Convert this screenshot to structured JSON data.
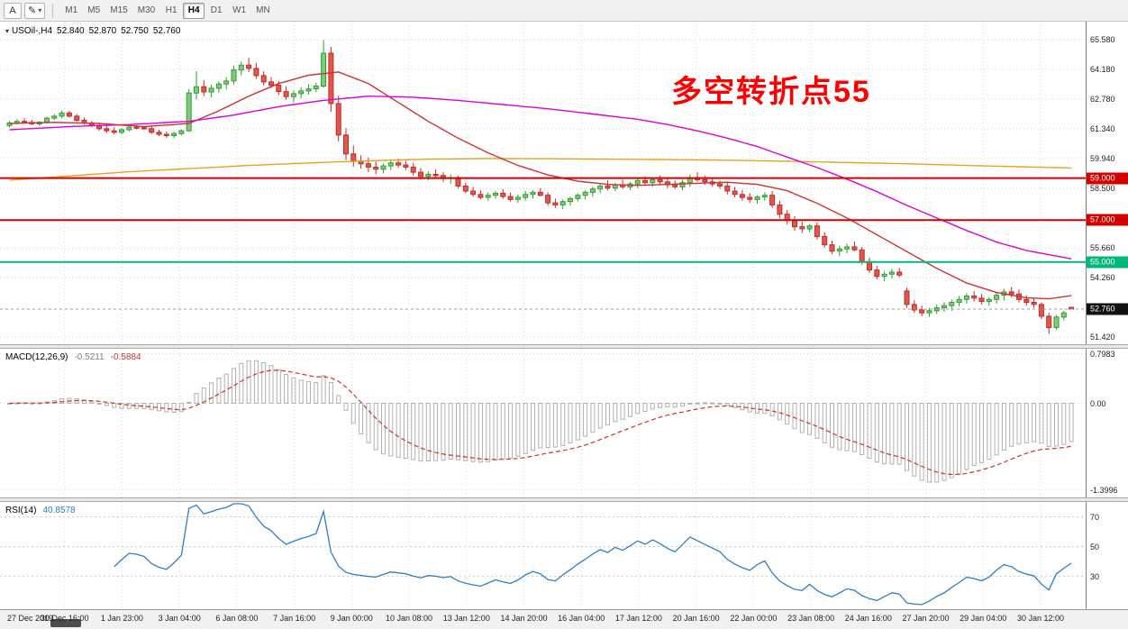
{
  "toolbar": {
    "text_tool_label": "A",
    "timeframes": [
      "M1",
      "M5",
      "M15",
      "M30",
      "H1",
      "H4",
      "D1",
      "W1",
      "MN"
    ],
    "active_timeframe": "H4"
  },
  "chart_header": {
    "symbol": "USOil-,H4",
    "open": "52.840",
    "high": "52.870",
    "low": "52.750",
    "close": "52.760"
  },
  "annotation": {
    "text": "多空转折点55",
    "color": "#ff0000"
  },
  "price_axis": {
    "grid": [
      {
        "price": 65.58,
        "label": "65.580"
      },
      {
        "price": 64.18,
        "label": "64.180"
      },
      {
        "price": 62.78,
        "label": "62.780"
      },
      {
        "price": 61.34,
        "label": "61.340"
      },
      {
        "price": 59.94,
        "label": "59.940"
      },
      {
        "price": 58.5,
        "label": "58.500"
      },
      {
        "price": 55.66,
        "label": "55.660"
      },
      {
        "price": 54.26,
        "label": "54.260"
      },
      {
        "price": 51.42,
        "label": "51.420"
      }
    ]
  },
  "hlines": [
    {
      "price": 59.0,
      "label": "59.000",
      "color": "#d40000"
    },
    {
      "price": 57.0,
      "label": "57.000",
      "color": "#d40000"
    },
    {
      "price": 55.0,
      "label": "55.000",
      "color": "#00b87a"
    }
  ],
  "current_price": {
    "value": 52.76,
    "label": "52.760",
    "tag_color": "#111111"
  },
  "indicators": {
    "macd": {
      "label": "MACD(12,26,9)",
      "value_main": "-0.5211",
      "value_signal": "-0.5884",
      "params": {
        "fast": 12,
        "slow": 26,
        "signal": 9
      },
      "axis_labels": [
        {
          "value": 0.7983,
          "label": "0.7983"
        },
        {
          "value": 0.0,
          "label": "0.00"
        },
        {
          "value": -1.3996,
          "label": "-1.3996"
        }
      ]
    },
    "rsi": {
      "label": "RSI(14)",
      "value": "40.8578",
      "period": 14,
      "levels": [
        {
          "value": 70,
          "label": "70"
        },
        {
          "value": 50,
          "label": "50"
        },
        {
          "value": 30,
          "label": "30"
        }
      ]
    }
  },
  "time_axis": {
    "ticks": [
      "27 Dec 2019",
      "30 Dec 16:00",
      "1 Jan 23:00",
      "3 Jan 04:00",
      "6 Jan 08:00",
      "7 Jan 16:00",
      "9 Jan 00:00",
      "10 Jan 08:00",
      "13 Jan 12:00",
      "14 Jan 20:00",
      "16 Jan 04:00",
      "17 Jan 12:00",
      "20 Jan 16:00",
      "22 Jan 00:00",
      "23 Jan 08:00",
      "24 Jan 16:00",
      "27 Jan 20:00",
      "29 Jan 04:00",
      "30 Jan 12:00"
    ]
  },
  "colors": {
    "bull_stroke": "#2f9e2f",
    "bull_fill": "#7ecb7e",
    "bear_stroke": "#c62828",
    "bear_fill": "#e0584c",
    "grid": "#d8d8d8",
    "macd_hist": "#b0b0b0",
    "macd_signal": "#cc3333",
    "rsi_line": "#2e7fc2",
    "rsi_level": "#c8c8c8",
    "current_line": "#999999"
  },
  "chart_data": {
    "type": "candlestick",
    "symbol": "USOil-",
    "timeframe": "H4",
    "title": "USOil-,H4 52.840 52.870 52.750 52.760",
    "price_range": [
      51.0,
      66.45
    ],
    "candles": [
      [
        61.5,
        61.72,
        61.4,
        61.62
      ],
      [
        61.62,
        61.8,
        61.55,
        61.7
      ],
      [
        61.7,
        61.85,
        61.58,
        61.65
      ],
      [
        61.65,
        61.78,
        61.52,
        61.58
      ],
      [
        61.58,
        61.72,
        61.48,
        61.66
      ],
      [
        61.66,
        61.92,
        61.6,
        61.85
      ],
      [
        61.85,
        62.05,
        61.75,
        61.95
      ],
      [
        61.95,
        62.22,
        61.85,
        62.1
      ],
      [
        62.1,
        62.2,
        61.88,
        61.95
      ],
      [
        61.95,
        62.05,
        61.68,
        61.75
      ],
      [
        61.75,
        61.88,
        61.55,
        61.62
      ],
      [
        61.62,
        61.72,
        61.42,
        61.5
      ],
      [
        61.5,
        61.62,
        61.25,
        61.35
      ],
      [
        61.35,
        61.5,
        61.15,
        61.25
      ],
      [
        61.25,
        61.42,
        61.08,
        61.18
      ],
      [
        61.18,
        61.38,
        61.1,
        61.3
      ],
      [
        61.3,
        61.5,
        61.22,
        61.42
      ],
      [
        61.42,
        61.52,
        61.32,
        61.4
      ],
      [
        61.4,
        61.48,
        61.28,
        61.35
      ],
      [
        61.35,
        61.45,
        61.1,
        61.18
      ],
      [
        61.18,
        61.3,
        61.0,
        61.08
      ],
      [
        61.08,
        61.22,
        60.92,
        61.02
      ],
      [
        61.02,
        61.2,
        60.9,
        61.12
      ],
      [
        61.12,
        61.32,
        61.02,
        61.25
      ],
      [
        61.25,
        63.25,
        61.2,
        63.05
      ],
      [
        63.05,
        64.09,
        62.75,
        63.35
      ],
      [
        63.35,
        63.65,
        62.9,
        63.1
      ],
      [
        63.1,
        63.45,
        62.85,
        63.28
      ],
      [
        63.28,
        63.6,
        63.05,
        63.48
      ],
      [
        63.48,
        63.8,
        63.22,
        63.62
      ],
      [
        63.62,
        64.35,
        63.45,
        64.15
      ],
      [
        64.15,
        64.55,
        63.9,
        64.38
      ],
      [
        64.38,
        64.72,
        64.05,
        64.22
      ],
      [
        64.22,
        64.48,
        63.72,
        63.88
      ],
      [
        63.88,
        64.08,
        63.42,
        63.58
      ],
      [
        63.58,
        63.82,
        63.28,
        63.42
      ],
      [
        63.42,
        63.62,
        62.95,
        63.12
      ],
      [
        63.12,
        63.38,
        62.72,
        62.88
      ],
      [
        62.88,
        63.15,
        62.6,
        63.02
      ],
      [
        63.02,
        63.32,
        62.8,
        63.15
      ],
      [
        63.15,
        63.48,
        62.98,
        63.25
      ],
      [
        63.25,
        63.55,
        63.08,
        63.38
      ],
      [
        63.38,
        65.58,
        63.3,
        64.95
      ],
      [
        64.95,
        65.25,
        62.15,
        62.55
      ],
      [
        62.55,
        62.92,
        60.75,
        61.05
      ],
      [
        61.05,
        61.38,
        59.85,
        60.15
      ],
      [
        60.15,
        60.55,
        59.55,
        59.82
      ],
      [
        59.82,
        60.08,
        59.45,
        59.68
      ],
      [
        59.68,
        59.98,
        59.28,
        59.52
      ],
      [
        59.52,
        59.78,
        59.18,
        59.42
      ],
      [
        59.42,
        59.68,
        59.22,
        59.58
      ],
      [
        59.58,
        59.88,
        59.38,
        59.72
      ],
      [
        59.72,
        59.92,
        59.48,
        59.62
      ],
      [
        59.62,
        59.82,
        59.38,
        59.52
      ],
      [
        59.52,
        59.72,
        59.12,
        59.28
      ],
      [
        59.28,
        59.48,
        58.92,
        59.08
      ],
      [
        59.08,
        59.32,
        58.88,
        59.18
      ],
      [
        59.18,
        59.42,
        58.98,
        59.12
      ],
      [
        59.12,
        59.28,
        58.82,
        58.98
      ],
      [
        58.98,
        59.18,
        58.72,
        59.02
      ],
      [
        59.02,
        59.12,
        58.52,
        58.62
      ],
      [
        58.62,
        58.78,
        58.28,
        58.38
      ],
      [
        58.38,
        58.58,
        58.12,
        58.22
      ],
      [
        58.22,
        58.42,
        57.98,
        58.08
      ],
      [
        58.08,
        58.32,
        57.92,
        58.18
      ],
      [
        58.18,
        58.38,
        58.02,
        58.28
      ],
      [
        58.28,
        58.48,
        58.02,
        58.12
      ],
      [
        58.12,
        58.32,
        57.88,
        57.98
      ],
      [
        57.98,
        58.22,
        57.82,
        58.08
      ],
      [
        58.08,
        58.38,
        57.92,
        58.22
      ],
      [
        58.22,
        58.42,
        58.02,
        58.32
      ],
      [
        58.32,
        58.52,
        58.12,
        58.18
      ],
      [
        58.18,
        58.32,
        57.68,
        57.82
      ],
      [
        57.82,
        58.02,
        57.58,
        57.72
      ],
      [
        57.72,
        57.98,
        57.52,
        57.88
      ],
      [
        57.88,
        58.12,
        57.68,
        58.02
      ],
      [
        58.02,
        58.28,
        57.88,
        58.18
      ],
      [
        58.18,
        58.42,
        57.98,
        58.32
      ],
      [
        58.32,
        58.58,
        58.12,
        58.48
      ],
      [
        58.48,
        58.72,
        58.28,
        58.62
      ],
      [
        58.62,
        58.88,
        58.42,
        58.52
      ],
      [
        58.52,
        58.78,
        58.38,
        58.68
      ],
      [
        58.68,
        58.92,
        58.48,
        58.58
      ],
      [
        58.58,
        58.82,
        58.42,
        58.72
      ],
      [
        58.72,
        58.98,
        58.52,
        58.88
      ],
      [
        58.88,
        59.08,
        58.62,
        58.78
      ],
      [
        58.78,
        59.02,
        58.58,
        58.92
      ],
      [
        58.92,
        59.12,
        58.68,
        58.82
      ],
      [
        58.82,
        58.98,
        58.52,
        58.68
      ],
      [
        58.68,
        58.88,
        58.48,
        58.58
      ],
      [
        58.58,
        58.92,
        58.42,
        58.78
      ],
      [
        58.78,
        59.18,
        58.58,
        59.02
      ],
      [
        59.02,
        59.28,
        58.82,
        58.92
      ],
      [
        58.92,
        59.12,
        58.68,
        58.82
      ],
      [
        58.82,
        58.98,
        58.58,
        58.72
      ],
      [
        58.72,
        58.88,
        58.48,
        58.62
      ],
      [
        58.62,
        58.78,
        58.22,
        58.38
      ],
      [
        58.38,
        58.58,
        58.08,
        58.22
      ],
      [
        58.22,
        58.42,
        57.92,
        58.08
      ],
      [
        58.08,
        58.28,
        57.82,
        57.98
      ],
      [
        57.98,
        58.18,
        57.78,
        58.1
      ],
      [
        58.1,
        58.32,
        57.92,
        58.18
      ],
      [
        58.18,
        58.38,
        57.58,
        57.72
      ],
      [
        57.72,
        57.92,
        57.08,
        57.28
      ],
      [
        57.28,
        57.48,
        56.78,
        56.98
      ],
      [
        56.98,
        57.18,
        56.48,
        56.68
      ],
      [
        56.68,
        56.92,
        56.38,
        56.58
      ],
      [
        56.58,
        56.82,
        56.42,
        56.72
      ],
      [
        56.72,
        56.88,
        56.08,
        56.22
      ],
      [
        56.22,
        56.42,
        55.68,
        55.82
      ],
      [
        55.82,
        56.02,
        55.38,
        55.52
      ],
      [
        55.52,
        55.78,
        55.28,
        55.62
      ],
      [
        55.62,
        55.88,
        55.42,
        55.72
      ],
      [
        55.72,
        55.98,
        55.52,
        55.58
      ],
      [
        55.58,
        55.72,
        54.88,
        55.02
      ],
      [
        55.02,
        55.22,
        54.48,
        54.62
      ],
      [
        54.62,
        54.82,
        54.18,
        54.32
      ],
      [
        54.32,
        54.58,
        54.08,
        54.42
      ],
      [
        54.42,
        54.68,
        54.22,
        54.52
      ],
      [
        54.52,
        54.72,
        54.28,
        54.38
      ],
      [
        53.62,
        53.78,
        52.82,
        52.98
      ],
      [
        52.98,
        53.18,
        52.58,
        52.72
      ],
      [
        52.72,
        52.92,
        52.42,
        52.58
      ],
      [
        52.58,
        52.82,
        52.38,
        52.68
      ],
      [
        52.68,
        52.98,
        52.52,
        52.82
      ],
      [
        52.82,
        53.08,
        52.62,
        52.92
      ],
      [
        52.92,
        53.22,
        52.68,
        53.08
      ],
      [
        53.08,
        53.38,
        52.88,
        53.22
      ],
      [
        53.22,
        53.52,
        53.02,
        53.38
      ],
      [
        53.38,
        53.62,
        53.12,
        53.28
      ],
      [
        53.28,
        53.48,
        52.98,
        53.12
      ],
      [
        53.12,
        53.32,
        52.92,
        53.22
      ],
      [
        53.22,
        53.58,
        53.02,
        53.42
      ],
      [
        53.42,
        53.72,
        53.18,
        53.58
      ],
      [
        53.58,
        53.82,
        53.32,
        53.48
      ],
      [
        53.48,
        53.68,
        53.08,
        53.22
      ],
      [
        53.22,
        53.42,
        52.92,
        53.08
      ],
      [
        53.08,
        53.28,
        52.82,
        52.98
      ],
      [
        52.98,
        53.08,
        52.28,
        52.42
      ],
      [
        52.42,
        52.58,
        51.58,
        51.88
      ],
      [
        51.88,
        52.48,
        51.78,
        52.38
      ],
      [
        52.38,
        52.68,
        52.22,
        52.58
      ],
      [
        52.84,
        52.87,
        52.75,
        52.76
      ]
    ],
    "moving_averages": [
      {
        "name": "ma-orange-slow",
        "color": "#e8a21e",
        "points": [
          [
            0,
            58.9
          ],
          [
            8,
            59.1
          ],
          [
            16,
            59.3
          ],
          [
            24,
            59.45
          ],
          [
            32,
            59.6
          ],
          [
            40,
            59.72
          ],
          [
            48,
            59.82
          ],
          [
            56,
            59.9
          ],
          [
            64,
            59.93
          ],
          [
            72,
            59.92
          ],
          [
            80,
            59.9
          ],
          [
            88,
            59.88
          ],
          [
            96,
            59.85
          ],
          [
            104,
            59.8
          ],
          [
            112,
            59.74
          ],
          [
            120,
            59.68
          ],
          [
            128,
            59.6
          ],
          [
            136,
            59.53
          ],
          [
            142,
            59.48
          ]
        ]
      },
      {
        "name": "ma-magenta-mid",
        "color": "#dd00dd",
        "points": [
          [
            0,
            61.3
          ],
          [
            8,
            61.45
          ],
          [
            16,
            61.55
          ],
          [
            24,
            61.7
          ],
          [
            30,
            62.0
          ],
          [
            36,
            62.4
          ],
          [
            42,
            62.7
          ],
          [
            48,
            62.9
          ],
          [
            54,
            62.85
          ],
          [
            60,
            62.7
          ],
          [
            66,
            62.5
          ],
          [
            72,
            62.3
          ],
          [
            78,
            62.05
          ],
          [
            84,
            61.8
          ],
          [
            88,
            61.55
          ],
          [
            92,
            61.25
          ],
          [
            96,
            60.9
          ],
          [
            100,
            60.5
          ],
          [
            104,
            60.0
          ],
          [
            108,
            59.5
          ],
          [
            112,
            58.95
          ],
          [
            116,
            58.35
          ],
          [
            120,
            57.7
          ],
          [
            124,
            57.1
          ],
          [
            128,
            56.5
          ],
          [
            132,
            55.95
          ],
          [
            136,
            55.55
          ],
          [
            139,
            55.35
          ],
          [
            142,
            55.15
          ]
        ]
      },
      {
        "name": "ma-red-fast",
        "color": "#cc3333",
        "points": [
          [
            0,
            61.6
          ],
          [
            6,
            61.65
          ],
          [
            12,
            61.6
          ],
          [
            18,
            61.45
          ],
          [
            24,
            61.6
          ],
          [
            28,
            62.2
          ],
          [
            32,
            62.9
          ],
          [
            36,
            63.5
          ],
          [
            40,
            63.9
          ],
          [
            44,
            64.05
          ],
          [
            48,
            63.5
          ],
          [
            52,
            62.6
          ],
          [
            56,
            61.7
          ],
          [
            60,
            60.9
          ],
          [
            64,
            60.2
          ],
          [
            68,
            59.6
          ],
          [
            72,
            59.15
          ],
          [
            76,
            58.85
          ],
          [
            80,
            58.7
          ],
          [
            84,
            58.65
          ],
          [
            88,
            58.7
          ],
          [
            92,
            58.75
          ],
          [
            96,
            58.8
          ],
          [
            100,
            58.7
          ],
          [
            104,
            58.4
          ],
          [
            108,
            57.8
          ],
          [
            112,
            57.1
          ],
          [
            116,
            56.3
          ],
          [
            120,
            55.5
          ],
          [
            124,
            54.7
          ],
          [
            128,
            54.0
          ],
          [
            132,
            53.55
          ],
          [
            136,
            53.3
          ],
          [
            139,
            53.25
          ],
          [
            142,
            53.4
          ]
        ]
      }
    ]
  }
}
